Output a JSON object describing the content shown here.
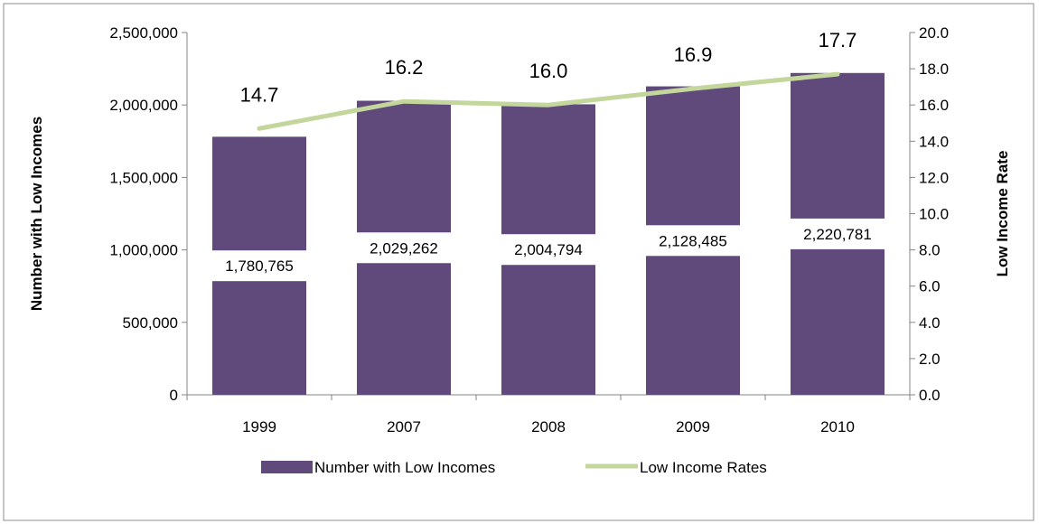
{
  "chart_data": {
    "type": "bar",
    "categories": [
      "1999",
      "2007",
      "2008",
      "2009",
      "2010"
    ],
    "series": [
      {
        "name": "Number with Low Incomes",
        "type": "bar",
        "axis": "left",
        "values": [
          1780765,
          2029262,
          2004794,
          2128485,
          2220781
        ],
        "labels": [
          "1,780,765",
          "2,029,262",
          "2,004,794",
          "2,128,485",
          "2,220,781"
        ],
        "color": "#604a7b"
      },
      {
        "name": "Low Income Rates",
        "type": "line",
        "axis": "right",
        "values": [
          14.7,
          16.2,
          16.0,
          16.9,
          17.7
        ],
        "labels": [
          "14.7",
          "16.2",
          "16.0",
          "16.9",
          "17.7"
        ],
        "color": "#c3d69b"
      }
    ],
    "y_left": {
      "label": "Number with Low Incomes",
      "range": [
        0,
        2500000
      ],
      "ticks": [
        "0",
        "500,000",
        "1,000,000",
        "1,500,000",
        "2,000,000",
        "2,500,000"
      ]
    },
    "y_right": {
      "label": "Low Income Rate",
      "range": [
        0,
        20
      ],
      "ticks": [
        "0.0",
        "2.0",
        "4.0",
        "6.0",
        "8.0",
        "10.0",
        "12.0",
        "14.0",
        "16.0",
        "18.0",
        "20.0"
      ]
    },
    "grid": false,
    "legend_position": "bottom"
  }
}
